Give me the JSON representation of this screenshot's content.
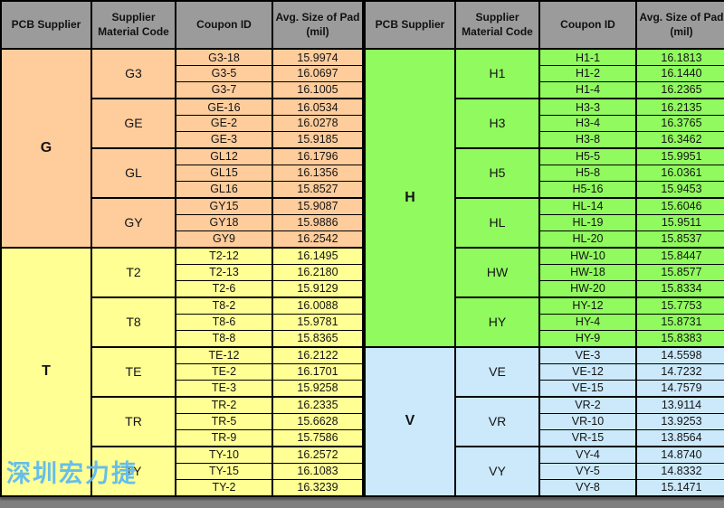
{
  "header": {
    "columns": [
      {
        "label": "PCB Supplier",
        "lines": [
          "PCB Supplier"
        ]
      },
      {
        "label": "Supplier Material Code",
        "lines": [
          "Supplier",
          "Material Code"
        ]
      },
      {
        "label": "Coupon ID",
        "lines": [
          "Coupon ID"
        ]
      },
      {
        "label": "Avg. Size of Pad (mil)",
        "lines": [
          "Avg. Size of Pad",
          "(mil)"
        ]
      }
    ],
    "names": [
      "header-pcb-supplier",
      "header-supplier-material-code",
      "header-coupon-id",
      "header-avg-size-of-pad"
    ]
  },
  "tables": [
    {
      "side": "left",
      "suppliers": [
        {
          "name": "G",
          "color": "#FFCC9C",
          "groups": [
            {
              "code": "G3",
              "rows": [
                [
                  "G3-18",
                  "15.9974"
                ],
                [
                  "G3-5",
                  "16.0697"
                ],
                [
                  "G3-7",
                  "16.1005"
                ]
              ]
            },
            {
              "code": "GE",
              "rows": [
                [
                  "GE-16",
                  "16.0534"
                ],
                [
                  "GE-2",
                  "16.0278"
                ],
                [
                  "GE-3",
                  "15.9185"
                ]
              ]
            },
            {
              "code": "GL",
              "rows": [
                [
                  "GL12",
                  "16.1796"
                ],
                [
                  "GL15",
                  "16.1356"
                ],
                [
                  "GL16",
                  "15.8527"
                ]
              ]
            },
            {
              "code": "GY",
              "rows": [
                [
                  "GY15",
                  "15.9087"
                ],
                [
                  "GY18",
                  "15.9886"
                ],
                [
                  "GY9",
                  "16.2542"
                ]
              ]
            }
          ]
        },
        {
          "name": "T",
          "color": "#FFFF94",
          "groups": [
            {
              "code": "T2",
              "rows": [
                [
                  "T2-12",
                  "16.1495"
                ],
                [
                  "T2-13",
                  "16.2180"
                ],
                [
                  "T2-6",
                  "15.9129"
                ]
              ]
            },
            {
              "code": "T8",
              "rows": [
                [
                  "T8-2",
                  "16.0088"
                ],
                [
                  "T8-6",
                  "15.9781"
                ],
                [
                  "T8-8",
                  "15.8365"
                ]
              ]
            },
            {
              "code": "TE",
              "rows": [
                [
                  "TE-12",
                  "16.2122"
                ],
                [
                  "TE-2",
                  "16.1701"
                ],
                [
                  "TE-3",
                  "15.9258"
                ]
              ]
            },
            {
              "code": "TR",
              "rows": [
                [
                  "TR-2",
                  "16.2335"
                ],
                [
                  "TR-5",
                  "15.6628"
                ],
                [
                  "TR-9",
                  "15.7586"
                ]
              ]
            },
            {
              "code": "TY",
              "rows": [
                [
                  "TY-10",
                  "16.2572"
                ],
                [
                  "TY-15",
                  "16.1083"
                ],
                [
                  "TY-2",
                  "16.3239"
                ]
              ]
            }
          ]
        }
      ]
    },
    {
      "side": "right",
      "suppliers": [
        {
          "name": "H",
          "color": "#90FA5F",
          "groups": [
            {
              "code": "H1",
              "rows": [
                [
                  "H1-1",
                  "16.1813"
                ],
                [
                  "H1-2",
                  "16.1440"
                ],
                [
                  "H1-4",
                  "16.2365"
                ]
              ]
            },
            {
              "code": "H3",
              "rows": [
                [
                  "H3-3",
                  "16.2135"
                ],
                [
                  "H3-4",
                  "16.3765"
                ],
                [
                  "H3-8",
                  "16.3462"
                ]
              ]
            },
            {
              "code": "H5",
              "rows": [
                [
                  "H5-5",
                  "15.9951"
                ],
                [
                  "H5-8",
                  "16.0361"
                ],
                [
                  "H5-16",
                  "15.9453"
                ]
              ]
            },
            {
              "code": "HL",
              "rows": [
                [
                  "HL-14",
                  "15.6046"
                ],
                [
                  "HL-19",
                  "15.9511"
                ],
                [
                  "HL-20",
                  "15.8537"
                ]
              ]
            },
            {
              "code": "HW",
              "rows": [
                [
                  "HW-10",
                  "15.8447"
                ],
                [
                  "HW-18",
                  "15.8577"
                ],
                [
                  "HW-20",
                  "15.8334"
                ]
              ]
            },
            {
              "code": "HY",
              "rows": [
                [
                  "HY-12",
                  "15.7753"
                ],
                [
                  "HY-4",
                  "15.8731"
                ],
                [
                  "HY-9",
                  "15.8383"
                ]
              ]
            }
          ]
        },
        {
          "name": "V",
          "color": "#CBE9FB",
          "groups": [
            {
              "code": "VE",
              "rows": [
                [
                  "VE-3",
                  "14.5598"
                ],
                [
                  "VE-12",
                  "14.7232"
                ],
                [
                  "VE-15",
                  "14.7579"
                ]
              ]
            },
            {
              "code": "VR",
              "rows": [
                [
                  "VR-2",
                  "13.9114"
                ],
                [
                  "VR-10",
                  "13.9253"
                ],
                [
                  "VR-15",
                  "13.8564"
                ]
              ]
            },
            {
              "code": "VY",
              "rows": [
                [
                  "VY-4",
                  "14.8740"
                ],
                [
                  "VY-5",
                  "14.8332"
                ],
                [
                  "VY-8",
                  "15.1471"
                ]
              ]
            }
          ]
        }
      ]
    }
  ],
  "watermark": {
    "text": "深圳宏力捷",
    "color": "#57B7F2"
  },
  "colors": {
    "header_bg": "#9B9B9B",
    "g_section": "#FFCC9C",
    "t_section": "#FFFF94",
    "h_section": "#90FA5F",
    "v_section": "#CBE9FB",
    "page_background": "#7F7F7F",
    "border": "#000000",
    "watermark": "#57B7F2"
  }
}
